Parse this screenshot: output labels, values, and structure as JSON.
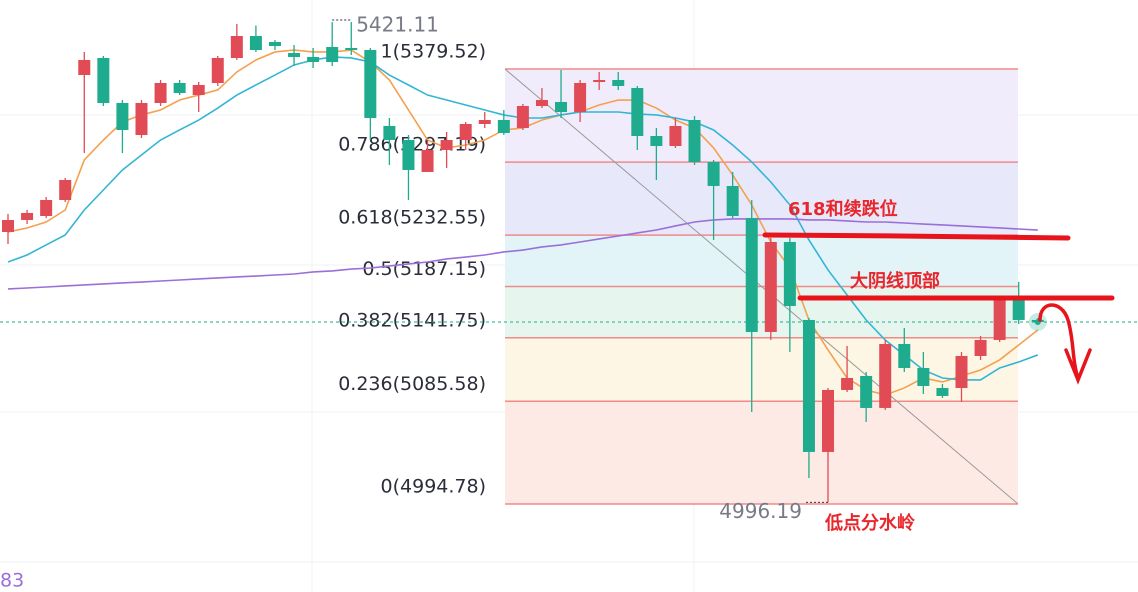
{
  "chart_data": {
    "type": "candlestick",
    "open": [
      5235.37,
      5245.98,
      5249.52,
      5263.67,
      5374.23,
      5389.27,
      5349.47,
      5321.16,
      5349.47,
      5367.16,
      5356.54,
      5367.16,
      5389.27,
      5408.73,
      5403.42,
      5393.69,
      5390.15,
      5399.0,
      5398.11,
      5396.34,
      5329.12,
      5316.74,
      5288.44,
      5307.9,
      5316.74,
      5330.89,
      5334.43,
      5327.35,
      5346.81,
      5350.35,
      5341.51,
      5368.04,
      5369.81,
      5362.74,
      5320.28,
      5311.43,
      5334.43,
      5297.28,
      5276.05,
      5247.75,
      5146.91,
      5226.52,
      5157.53,
      5040.78,
      5095.61,
      5107.99,
      5079.69,
      5136.3,
      5115.07,
      5097.38,
      5097.38,
      5125.68,
      5139.84,
      5178.76,
      5157.53
    ],
    "high": [
      5251.29,
      5254.83,
      5266.32,
      5283.13,
      5394.57,
      5391.03,
      5352.12,
      5352.12,
      5369.81,
      5369.81,
      5368.04,
      5391.03,
      5419.29,
      5418.0,
      5405.19,
      5400.77,
      5398.11,
      5421.11,
      5421.11,
      5398.11,
      5336.2,
      5321.16,
      5316.74,
      5323.82,
      5332.66,
      5341.51,
      5343.27,
      5348.58,
      5362.74,
      5378.66,
      5369.81,
      5376.89,
      5376.89,
      5364.5,
      5327.35,
      5336.2,
      5337.97,
      5299.05,
      5288.44,
      5263.67,
      5230.06,
      5230.06,
      5159.3,
      5097.38,
      5134.53,
      5111.53,
      5139.84,
      5150.45,
      5129.22,
      5100.92,
      5129.22,
      5143.38,
      5178.76,
      5191.14,
      5159.3
    ],
    "low": [
      5224.75,
      5242.44,
      5247.75,
      5261.9,
      5305.24,
      5346.81,
      5305.24,
      5318.51,
      5346.81,
      5356.54,
      5341.51,
      5364.5,
      5387.5,
      5394.57,
      5396.34,
      5382.19,
      5380.42,
      5382.19,
      5391.92,
      5316.74,
      5294.63,
      5263.67,
      5288.44,
      5291.98,
      5307.9,
      5327.35,
      5321.16,
      5325.59,
      5345.04,
      5336.2,
      5332.66,
      5360.97,
      5360.97,
      5307.9,
      5281.36,
      5309.66,
      5294.63,
      5228.29,
      5247.75,
      5076.16,
      5139.84,
      5129.22,
      5017.78,
      4996.19,
      5093.84,
      5067.31,
      5077.92,
      5111.53,
      5092.08,
      5088.54,
      5085.0,
      5122.15,
      5138.07,
      5153.99,
      5153.99
    ],
    "close": [
      5245.98,
      5252.17,
      5263.67,
      5281.36,
      5387.5,
      5349.47,
      5325.59,
      5349.47,
      5367.16,
      5358.31,
      5365.39,
      5389.27,
      5408.73,
      5396.34,
      5399.88,
      5390.15,
      5385.73,
      5385.73,
      5396.34,
      5336.2,
      5316.74,
      5290.21,
      5307.9,
      5316.74,
      5330.89,
      5334.43,
      5322.93,
      5346.81,
      5352.12,
      5341.51,
      5367.16,
      5369.81,
      5364.5,
      5320.28,
      5311.43,
      5329.12,
      5297.28,
      5276.05,
      5249.52,
      5146.91,
      5226.52,
      5169.91,
      5040.78,
      5095.61,
      5106.23,
      5079.69,
      5136.3,
      5115.07,
      5099.15,
      5090.31,
      5125.68,
      5139.84,
      5178.76,
      5157.53,
      5155.76
    ],
    "up_color": "#e04b55",
    "down_color": "#1fab8e",
    "lines": [
      {
        "color": "#f5a04f",
        "values": [
          5235.4,
          5238.9,
          5244.2,
          5254.8,
          5299.1,
          5316.7,
          5332.7,
          5338.9,
          5343.3,
          5352.1,
          5356.5,
          5361.0,
          5376.9,
          5387.5,
          5394.6,
          5396.3,
          5394.6,
          5394.6,
          5396.3,
          5385.7,
          5369.8,
          5343.3,
          5316.7,
          5309.7,
          5312.3,
          5316.7,
          5325.6,
          5327.4,
          5334.4,
          5338.9,
          5341.5,
          5347.7,
          5352.1,
          5352.1,
          5345.0,
          5334.4,
          5327.4,
          5309.7,
          5285.8,
          5259.3,
          5226.5,
          5203.5,
          5157.5,
          5131.0,
          5106.2,
          5095.6,
          5091.2,
          5097.4,
          5106.2,
          5102.7,
          5108.0,
          5113.3,
          5122.2,
          5135.4,
          5148.7
        ]
      },
      {
        "color": "#33b5d6",
        "values": [
          5208.8,
          5215.0,
          5223.9,
          5232.7,
          5254.8,
          5272.5,
          5290.2,
          5303.5,
          5316.7,
          5325.6,
          5334.4,
          5345.0,
          5356.5,
          5365.4,
          5374.2,
          5383.1,
          5387.5,
          5390.2,
          5389.3,
          5385.7,
          5374.2,
          5365.4,
          5356.5,
          5352.1,
          5347.7,
          5343.3,
          5338.9,
          5336.2,
          5336.2,
          5338.9,
          5341.5,
          5341.5,
          5341.5,
          5339.7,
          5338.9,
          5336.2,
          5332.7,
          5325.6,
          5312.3,
          5297.3,
          5279.6,
          5259.3,
          5228.3,
          5201.8,
          5179.6,
          5157.5,
          5139.8,
          5126.6,
          5113.3,
          5106.2,
          5104.5,
          5104.5,
          5115.1,
          5120.4,
          5126.6
        ]
      },
      {
        "color": "#9b6fd8",
        "values": [
          5185.0,
          5185.8,
          5186.7,
          5187.6,
          5188.5,
          5189.4,
          5190.3,
          5191.1,
          5192.0,
          5192.9,
          5193.8,
          5194.7,
          5195.6,
          5196.4,
          5197.3,
          5198.2,
          5200.0,
          5200.9,
          5202.6,
          5203.5,
          5205.3,
          5207.1,
          5208.8,
          5211.5,
          5213.2,
          5215.0,
          5217.7,
          5219.4,
          5222.1,
          5223.9,
          5226.5,
          5229.2,
          5231.8,
          5234.5,
          5237.1,
          5240.7,
          5244.2,
          5246.0,
          5246.9,
          5246.9,
          5246.9,
          5246.9,
          5246.0,
          5246.0,
          5245.1,
          5244.2,
          5244.2,
          5243.3,
          5242.4,
          5241.6,
          5240.7,
          5239.8,
          5238.9,
          5238.0,
          5237.1
        ]
      }
    ],
    "ylim": [
      4916.9,
      5440.57
    ],
    "fib_levels": [
      {
        "value": 5379.52,
        "label": "1(5379.52)"
      },
      {
        "value": 5297.19,
        "label": "0.786(5297.19)"
      },
      {
        "value": 5232.55,
        "label": "0.618(5232.55)"
      },
      {
        "value": 5187.15,
        "label": "0.5(5187.15)"
      },
      {
        "value": 5141.75,
        "label": "0.382(5141.75)"
      },
      {
        "value": 5085.58,
        "label": "0.236(5085.58)"
      },
      {
        "value": 4994.78,
        "label": "0(4994.78)"
      }
    ],
    "fib_colors": [
      "#f0ecfb",
      "#e7e9fb",
      "#e3f4f8",
      "#e6f6ef",
      "#fdf6e4",
      "#fdeae5"
    ],
    "fib_line_color": "#f08a8a",
    "annotations": [
      "618和续跌位",
      "大阴线顶部",
      "低点分水岭"
    ],
    "left_label": "83"
  }
}
